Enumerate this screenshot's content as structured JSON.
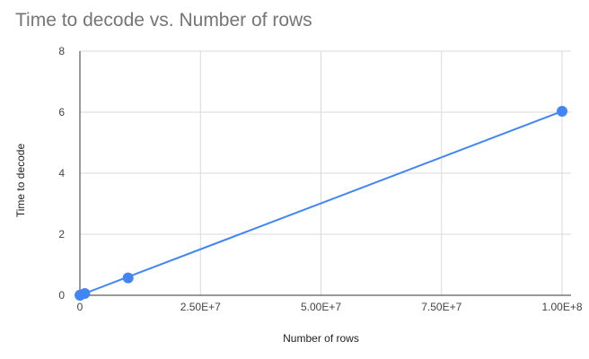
{
  "chart_data": {
    "type": "scatter",
    "title": "Time to decode vs. Number of rows",
    "xlabel": "Number of rows",
    "ylabel": "Time to decode",
    "xlim": [
      0,
      100000000
    ],
    "ylim": [
      0,
      8
    ],
    "x_ticks": [
      0,
      25000000,
      50000000,
      75000000,
      100000000
    ],
    "x_tick_labels": [
      "0",
      "2.50E+7",
      "5.00E+7",
      "7.50E+7",
      "1.00E+8"
    ],
    "y_ticks": [
      0,
      2,
      4,
      6,
      8
    ],
    "y_tick_labels": [
      "0",
      "2",
      "4",
      "6",
      "8"
    ],
    "grid": true,
    "series": [
      {
        "color": "#4285f4",
        "points": [
          {
            "x": 10000,
            "y": 0.0
          },
          {
            "x": 100000,
            "y": 0.01
          },
          {
            "x": 1000000,
            "y": 0.06
          },
          {
            "x": 10000000,
            "y": 0.57
          },
          {
            "x": 100000000,
            "y": 6.03
          }
        ]
      }
    ],
    "trendline": {
      "color": "#4285f4",
      "x": [
        0,
        100000000
      ],
      "y": [
        0,
        6.03
      ]
    }
  }
}
